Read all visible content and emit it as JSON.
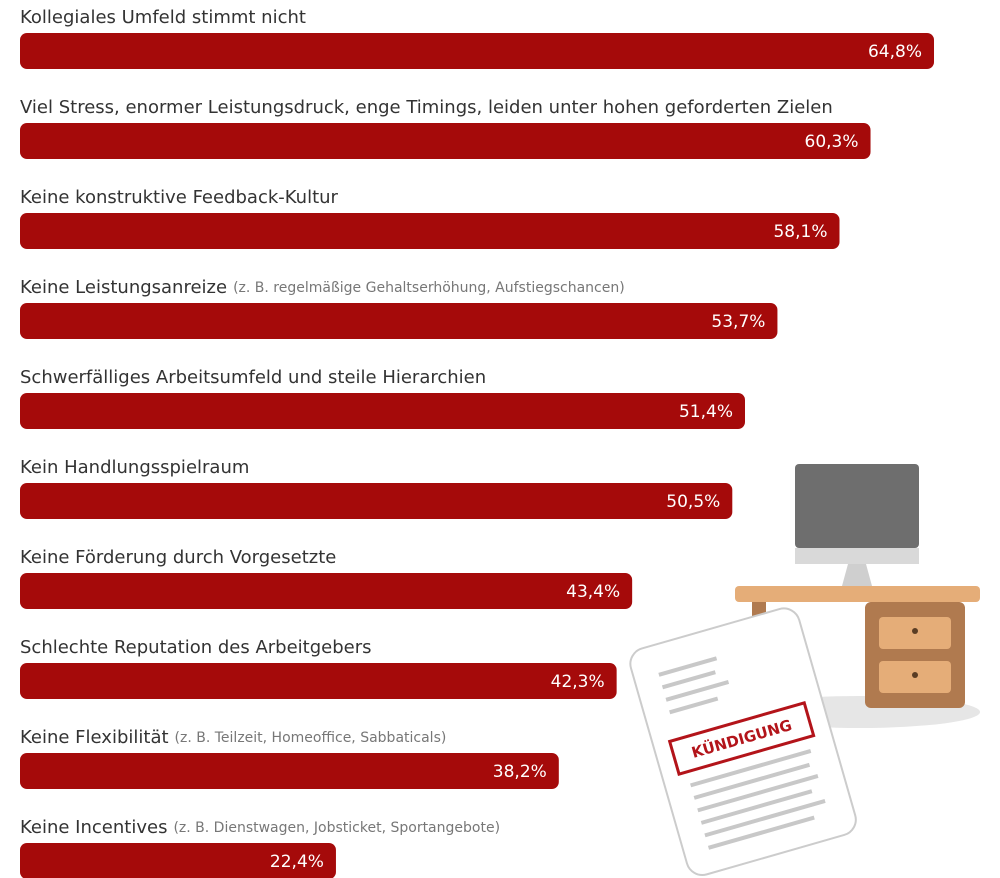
{
  "chart_data": {
    "type": "bar",
    "orientation": "horizontal",
    "categories": [
      "Kollegiales Umfeld stimmt nicht",
      "Viel Stress, enormer Leistungsdruck, enge Timings, leiden unter hohen geforderten Zielen",
      "Keine konstruktive Feedback-Kultur",
      "Keine Leistungsanreize",
      "Schwerfälliges Arbeitsumfeld und steile Hierarchien",
      "Kein Handlungsspielraum",
      "Keine Förderung durch Vorgesetzte",
      "Schlechte Reputation des Arbeitgebers",
      "Keine Flexibilität",
      "Keine Incentives"
    ],
    "notes": [
      null,
      null,
      null,
      "(z. B. regelmäßige Gehaltserhöhung, Aufstiegschancen)",
      null,
      null,
      null,
      null,
      "(z. B. Teilzeit, Homeoffice, Sabbaticals)",
      "(z. B. Dienstwagen, Jobsticket, Sportangebote)"
    ],
    "values": [
      64.8,
      60.3,
      58.1,
      53.7,
      51.4,
      50.5,
      43.4,
      42.3,
      38.2,
      22.4
    ],
    "value_labels": [
      "64,8%",
      "60,3%",
      "58,1%",
      "53,7%",
      "51,4%",
      "50,5%",
      "43,4%",
      "42,3%",
      "38,2%",
      "22,4%"
    ],
    "color": "#a50a0a"
  },
  "illustration": {
    "stamp": "KÜNDIGUNG"
  }
}
